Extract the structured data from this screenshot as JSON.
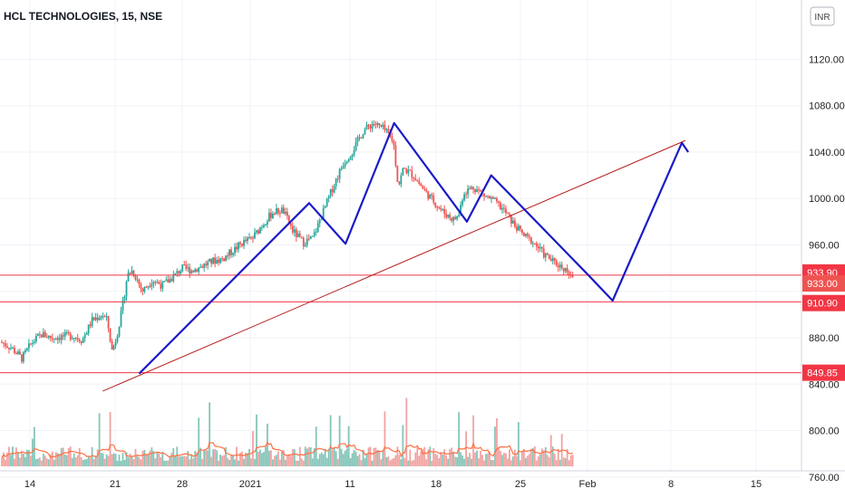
{
  "chart_data": {
    "type": "candlestick",
    "title": "HCL TECHNOLOGIES, 15, NSE",
    "currency": "INR",
    "x_ticks": [
      "14",
      "21",
      "28",
      "2021",
      "11",
      "18",
      "25",
      "Feb",
      "8",
      "15"
    ],
    "y_ticks": [
      760,
      800,
      840,
      880,
      920,
      960,
      1000,
      1040,
      1080,
      1120
    ],
    "y_tick_labels": [
      "760.00",
      "800.00",
      "840.00",
      "880.00",
      "",
      "960.00",
      "1000.00",
      "1040.00",
      "1080.00",
      "1120.00"
    ],
    "ylim": [
      752,
      1152
    ],
    "price_path": [
      [
        0,
        876
      ],
      [
        1,
        871
      ],
      [
        2,
        862
      ],
      [
        3,
        876
      ],
      [
        4,
        883
      ],
      [
        5,
        880
      ],
      [
        6,
        881
      ],
      [
        7,
        882
      ],
      [
        8,
        878
      ],
      [
        9,
        895
      ],
      [
        10,
        900
      ],
      [
        10.5,
        895
      ],
      [
        11,
        868
      ],
      [
        11.5,
        884
      ],
      [
        12,
        905
      ],
      [
        12.5,
        934
      ],
      [
        13,
        938
      ],
      [
        13.5,
        930
      ],
      [
        14,
        920
      ],
      [
        15,
        930
      ],
      [
        16,
        925
      ],
      [
        17,
        932
      ],
      [
        18,
        940
      ],
      [
        19,
        938
      ],
      [
        20,
        942
      ],
      [
        21,
        946
      ],
      [
        22,
        948
      ],
      [
        23,
        955
      ],
      [
        24,
        962
      ],
      [
        25,
        966
      ],
      [
        26,
        978
      ],
      [
        27,
        988
      ],
      [
        28,
        990
      ],
      [
        29,
        972
      ],
      [
        30,
        962
      ],
      [
        31,
        966
      ],
      [
        32,
        988
      ],
      [
        33,
        1010
      ],
      [
        34,
        1030
      ],
      [
        35,
        1042
      ],
      [
        36,
        1058
      ],
      [
        37,
        1065
      ],
      [
        38,
        1060
      ],
      [
        39,
        1050
      ],
      [
        39.5,
        1010
      ],
      [
        40,
        1026
      ],
      [
        41,
        1020
      ],
      [
        42,
        1008
      ],
      [
        43,
        998
      ],
      [
        44,
        988
      ],
      [
        45,
        982
      ],
      [
        45.5,
        985
      ],
      [
        46,
        1005
      ],
      [
        47,
        1010
      ],
      [
        48,
        1003
      ],
      [
        49,
        998
      ],
      [
        50,
        990
      ],
      [
        51,
        978
      ],
      [
        52,
        968
      ],
      [
        53,
        962
      ],
      [
        54,
        952
      ],
      [
        55,
        945
      ],
      [
        56,
        940
      ],
      [
        57,
        934
      ]
    ],
    "pattern_line": [
      [
        "2020-12-23",
        849
      ],
      [
        "2021-01-06",
        996
      ],
      [
        "2021-01-09",
        961
      ],
      [
        "2021-01-13",
        1065
      ],
      [
        "2021-01-19",
        980
      ],
      [
        "2021-01-21",
        1020
      ],
      [
        "2021-01-29",
        934
      ],
      [
        "2021-01-31",
        912
      ],
      [
        "2021-02-06",
        1048
      ],
      [
        "2021-02-06",
        1040
      ]
    ],
    "trend_line": [
      [
        "2020-12-20",
        834
      ],
      [
        "2021-02-06",
        1050
      ]
    ],
    "levels": [
      {
        "label": "933.90",
        "value": 933.9
      },
      {
        "label": "910.90",
        "value": 910.9
      },
      {
        "label": "849.85",
        "value": 849.85
      }
    ],
    "last_price": {
      "label": "933.00",
      "value": 933.0
    },
    "colors": {
      "up": "#26a69a",
      "down": "#ef5350",
      "pattern": "#1a1ac8",
      "trend": "#b71c1c",
      "level": "#f23645",
      "last": "#ef5350",
      "volume_up": "#85c5b9",
      "volume_down": "#f2a3a1",
      "volume_ma": "#ff7043"
    }
  }
}
